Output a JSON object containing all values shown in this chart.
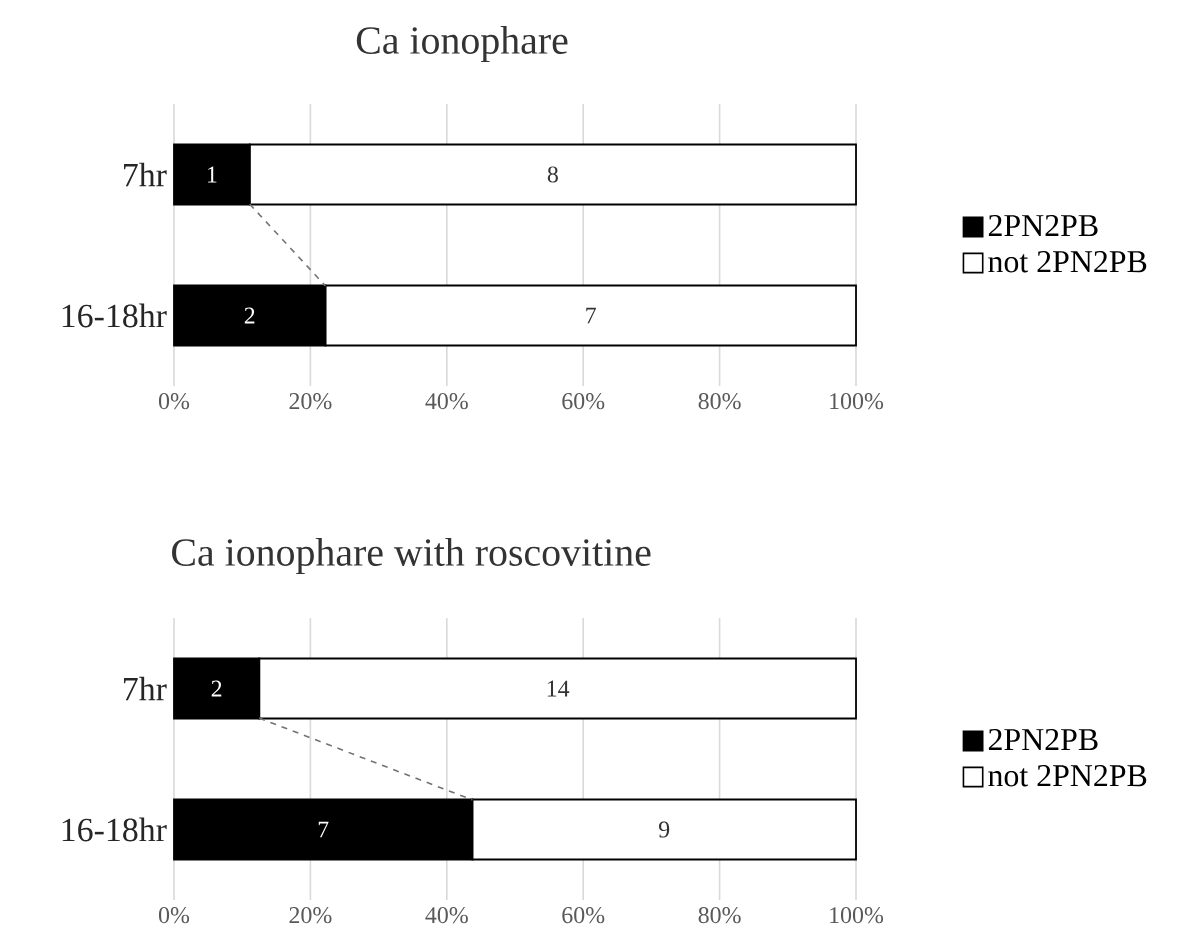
{
  "chart_data": [
    {
      "type": "bar",
      "orientation": "horizontal",
      "stacked": true,
      "title": "Ca ionophare",
      "categories": [
        "7hr",
        "16-18hr"
      ],
      "series": [
        {
          "name": "2PN2PB",
          "color": "#000000",
          "values": [
            11.1,
            22.2
          ]
        },
        {
          "name": "not 2PN2PB",
          "color": "#ffffff",
          "values": [
            88.9,
            77.8
          ]
        }
      ],
      "annotations": [
        "1",
        "2",
        "8",
        "7"
      ],
      "xlim": [
        0,
        100
      ],
      "xticks": [
        {
          "value": 0,
          "label": "0%"
        },
        {
          "value": 20,
          "label": "20%"
        },
        {
          "value": 40,
          "label": "40%"
        },
        {
          "value": 60,
          "label": "60%"
        },
        {
          "value": 80,
          "label": "80%"
        },
        {
          "value": 100,
          "label": "100%"
        }
      ],
      "grid": "x",
      "legend": "right"
    },
    {
      "type": "bar",
      "orientation": "horizontal",
      "stacked": true,
      "title": "Ca ionophare with roscovitine",
      "categories": [
        "7hr",
        "16-18hr"
      ],
      "series": [
        {
          "name": "2PN2PB",
          "color": "#000000",
          "values": [
            12.5,
            43.75
          ]
        },
        {
          "name": "not 2PN2PB",
          "color": "#ffffff",
          "values": [
            87.5,
            56.25
          ]
        }
      ],
      "annotations": [
        "2",
        "7",
        "14",
        "9"
      ],
      "xlim": [
        0,
        100
      ],
      "xticks": [
        {
          "value": 0,
          "label": "0%"
        },
        {
          "value": 20,
          "label": "20%"
        },
        {
          "value": 40,
          "label": "40%"
        },
        {
          "value": 60,
          "label": "60%"
        },
        {
          "value": 80,
          "label": "80%"
        },
        {
          "value": 100,
          "label": "100%"
        }
      ],
      "grid": "x",
      "legend": "right"
    }
  ]
}
